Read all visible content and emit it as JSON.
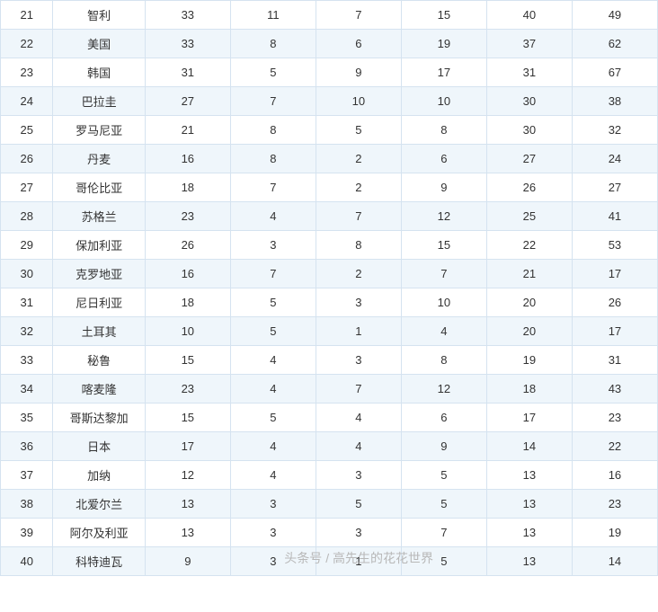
{
  "table": {
    "background_even": "#ffffff",
    "background_odd": "#eff6fb",
    "border_color": "#d5e3f0",
    "text_color": "#333333",
    "font_size": 13,
    "columns": 8,
    "rows": [
      [
        "21",
        "智利",
        "33",
        "11",
        "7",
        "15",
        "40",
        "49"
      ],
      [
        "22",
        "美国",
        "33",
        "8",
        "6",
        "19",
        "37",
        "62"
      ],
      [
        "23",
        "韩国",
        "31",
        "5",
        "9",
        "17",
        "31",
        "67"
      ],
      [
        "24",
        "巴拉圭",
        "27",
        "7",
        "10",
        "10",
        "30",
        "38"
      ],
      [
        "25",
        "罗马尼亚",
        "21",
        "8",
        "5",
        "8",
        "30",
        "32"
      ],
      [
        "26",
        "丹麦",
        "16",
        "8",
        "2",
        "6",
        "27",
        "24"
      ],
      [
        "27",
        "哥伦比亚",
        "18",
        "7",
        "2",
        "9",
        "26",
        "27"
      ],
      [
        "28",
        "苏格兰",
        "23",
        "4",
        "7",
        "12",
        "25",
        "41"
      ],
      [
        "29",
        "保加利亚",
        "26",
        "3",
        "8",
        "15",
        "22",
        "53"
      ],
      [
        "30",
        "克罗地亚",
        "16",
        "7",
        "2",
        "7",
        "21",
        "17"
      ],
      [
        "31",
        "尼日利亚",
        "18",
        "5",
        "3",
        "10",
        "20",
        "26"
      ],
      [
        "32",
        "土耳其",
        "10",
        "5",
        "1",
        "4",
        "20",
        "17"
      ],
      [
        "33",
        "秘鲁",
        "15",
        "4",
        "3",
        "8",
        "19",
        "31"
      ],
      [
        "34",
        "喀麦隆",
        "23",
        "4",
        "7",
        "12",
        "18",
        "43"
      ],
      [
        "35",
        "哥斯达黎加",
        "15",
        "5",
        "4",
        "6",
        "17",
        "23"
      ],
      [
        "36",
        "日本",
        "17",
        "4",
        "4",
        "9",
        "14",
        "22"
      ],
      [
        "37",
        "加纳",
        "12",
        "4",
        "3",
        "5",
        "13",
        "16"
      ],
      [
        "38",
        "北爱尔兰",
        "13",
        "3",
        "5",
        "5",
        "13",
        "23"
      ],
      [
        "39",
        "阿尔及利亚",
        "13",
        "3",
        "3",
        "7",
        "13",
        "19"
      ],
      [
        "40",
        "科特迪瓦",
        "9",
        "3",
        "1",
        "5",
        "13",
        "14"
      ]
    ]
  },
  "watermark": {
    "text": "头条号 / 高先生的花花世界",
    "color": "#b8b8b8",
    "font_size": 14
  }
}
